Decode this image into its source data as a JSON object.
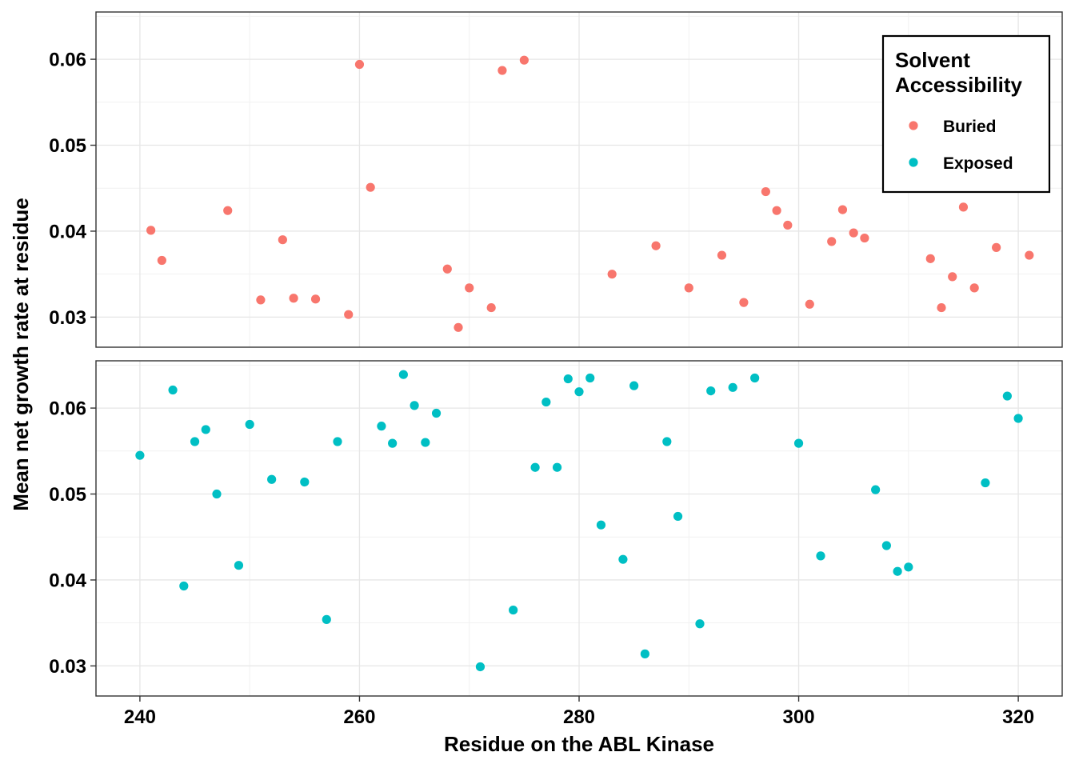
{
  "chart_data": {
    "type": "scatter",
    "facets": [
      "Buried",
      "Exposed"
    ],
    "xlabel": "Residue on the ABL Kinase",
    "ylabel": "Mean net growth rate at residue",
    "xlim": [
      236,
      324
    ],
    "ylim": [
      0.0265,
      0.0655
    ],
    "x_ticks": [
      240,
      260,
      280,
      300,
      320
    ],
    "y_ticks": [
      0.03,
      0.04,
      0.05,
      0.06
    ],
    "x_tick_labels": [
      "240",
      "260",
      "280",
      "300",
      "320"
    ],
    "y_tick_labels": [
      "0.03",
      "0.04",
      "0.05",
      "0.06"
    ],
    "grid": true,
    "legend": {
      "title_lines": [
        "Solvent",
        "Accessibility"
      ],
      "placement": "top-right"
    },
    "series": [
      {
        "name": "Buried",
        "color": "#F8766D",
        "points": [
          [
            241,
            0.0401
          ],
          [
            242,
            0.0366
          ],
          [
            248,
            0.0424
          ],
          [
            251,
            0.032
          ],
          [
            253,
            0.039
          ],
          [
            254,
            0.0322
          ],
          [
            256,
            0.0321
          ],
          [
            259,
            0.0303
          ],
          [
            260,
            0.0594
          ],
          [
            261,
            0.0451
          ],
          [
            268,
            0.0356
          ],
          [
            269,
            0.0288
          ],
          [
            270,
            0.0334
          ],
          [
            272,
            0.0311
          ],
          [
            273,
            0.0587
          ],
          [
            275,
            0.0599
          ],
          [
            283,
            0.035
          ],
          [
            287,
            0.0383
          ],
          [
            290,
            0.0334
          ],
          [
            293,
            0.0372
          ],
          [
            295,
            0.0317
          ],
          [
            297,
            0.0446
          ],
          [
            298,
            0.0424
          ],
          [
            299,
            0.0407
          ],
          [
            301,
            0.0315
          ],
          [
            303,
            0.0388
          ],
          [
            304,
            0.0425
          ],
          [
            305,
            0.0398
          ],
          [
            306,
            0.0392
          ],
          [
            312,
            0.0368
          ],
          [
            313,
            0.0311
          ],
          [
            314,
            0.0347
          ],
          [
            315,
            0.0428
          ],
          [
            316,
            0.0334
          ],
          [
            318,
            0.0381
          ],
          [
            321,
            0.0372
          ]
        ]
      },
      {
        "name": "Exposed",
        "color": "#00BFC4",
        "points": [
          [
            240,
            0.0545
          ],
          [
            243,
            0.0621
          ],
          [
            244,
            0.0393
          ],
          [
            245,
            0.0561
          ],
          [
            246,
            0.0575
          ],
          [
            247,
            0.05
          ],
          [
            249,
            0.0417
          ],
          [
            250,
            0.0581
          ],
          [
            252,
            0.0517
          ],
          [
            255,
            0.0514
          ],
          [
            257,
            0.0354
          ],
          [
            258,
            0.0561
          ],
          [
            262,
            0.0579
          ],
          [
            263,
            0.0559
          ],
          [
            264,
            0.0639
          ],
          [
            265,
            0.0603
          ],
          [
            266,
            0.056
          ],
          [
            267,
            0.0594
          ],
          [
            271,
            0.0299
          ],
          [
            274,
            0.0365
          ],
          [
            276,
            0.0531
          ],
          [
            277,
            0.0607
          ],
          [
            278,
            0.0531
          ],
          [
            279,
            0.0634
          ],
          [
            280,
            0.0619
          ],
          [
            281,
            0.0635
          ],
          [
            282,
            0.0464
          ],
          [
            284,
            0.0424
          ],
          [
            285,
            0.0626
          ],
          [
            286,
            0.0314
          ],
          [
            288,
            0.0561
          ],
          [
            289,
            0.0474
          ],
          [
            291,
            0.0349
          ],
          [
            292,
            0.062
          ],
          [
            294,
            0.0624
          ],
          [
            296,
            0.0635
          ],
          [
            300,
            0.0559
          ],
          [
            302,
            0.0428
          ],
          [
            307,
            0.0505
          ],
          [
            308,
            0.044
          ],
          [
            309,
            0.041
          ],
          [
            310,
            0.0415
          ],
          [
            317,
            0.0513
          ],
          [
            319,
            0.0614
          ],
          [
            320,
            0.0588
          ]
        ]
      }
    ]
  }
}
